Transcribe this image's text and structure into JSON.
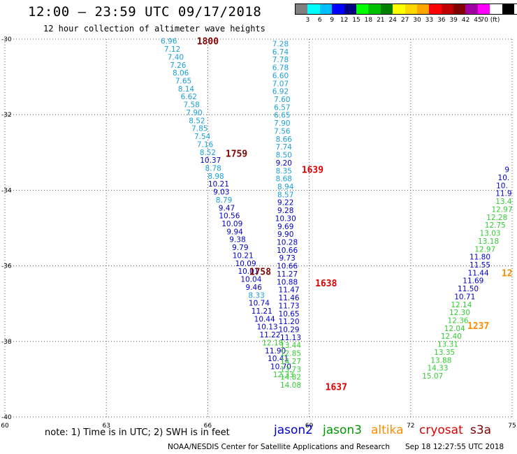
{
  "header": {
    "title": "12:00 – 23:59 UTC 09/17/2018",
    "subtitle": "12 hour collection of altimeter wave heights"
  },
  "colorbar": {
    "colors": [
      "#808080",
      "#00ffff",
      "#00bfff",
      "#0000ff",
      "#000080",
      "#00ff00",
      "#00c000",
      "#008000",
      "#ffff00",
      "#ffd700",
      "#ffa500",
      "#ff0000",
      "#c00000",
      "#800000",
      "#a000a0",
      "#ff00ff",
      "#ffffff",
      "#000000"
    ],
    "ticks": [
      "3",
      "6",
      "9",
      "12",
      "15",
      "18",
      "21",
      "24",
      "27",
      "30",
      "33",
      "36",
      "39",
      "42",
      "45",
      "70 (ft)"
    ]
  },
  "map": {
    "lon_range": [
      60,
      75
    ],
    "lat_range": [
      -40,
      -30
    ],
    "lat_ticks": [
      "-30",
      "-32",
      "-34",
      "-36",
      "-38",
      "-40"
    ],
    "lon_ticks": [
      "60",
      "63",
      "66",
      "69",
      "72",
      "75"
    ]
  },
  "mission_colors": {
    "jason2": "#0000cc",
    "jason3": "#009900",
    "altika": "#ff8c00",
    "cryosat": "#dd0000",
    "s3a": "#800000"
  },
  "value_colors": {
    "6-9": "#1ca0d8",
    "9-12": "#0000cc",
    "12-15": "#33cc33"
  },
  "tracks": [
    {
      "mission": "s3a",
      "time_label": "1800",
      "label_at": [
        66.0,
        -30.05
      ],
      "points": [
        [
          64.85,
          -30.05,
          "6.96"
        ],
        [
          64.95,
          -30.26,
          "7.12"
        ],
        [
          65.05,
          -30.47,
          "7.40"
        ],
        [
          65.12,
          -30.68,
          "7.26"
        ],
        [
          65.2,
          -30.89,
          "8.06"
        ],
        [
          65.28,
          -31.1,
          "7.65"
        ],
        [
          65.36,
          -31.31,
          "8.14"
        ],
        [
          65.44,
          -31.52,
          "6.62"
        ],
        [
          65.52,
          -31.73,
          "7.58"
        ],
        [
          65.6,
          -31.94,
          "7.90"
        ],
        [
          65.68,
          -32.15,
          "8.52"
        ],
        [
          65.76,
          -32.36,
          "7.85"
        ],
        [
          65.84,
          -32.57,
          "7.54"
        ],
        [
          65.92,
          -32.78,
          "7.16"
        ],
        [
          66.0,
          -32.99,
          "8.52"
        ],
        [
          66.08,
          -33.2,
          "10.37"
        ],
        [
          66.16,
          -33.41,
          "8.78"
        ],
        [
          66.24,
          -33.62,
          "8.98"
        ],
        [
          66.32,
          -33.83,
          "10.21"
        ],
        [
          66.4,
          -34.04,
          "9.03"
        ],
        [
          66.48,
          -34.25,
          "8.79"
        ],
        [
          66.56,
          -34.46,
          "9.47"
        ],
        [
          66.64,
          -34.67,
          "10.56"
        ],
        [
          66.72,
          -34.88,
          "10.09"
        ],
        [
          66.8,
          -35.09,
          "9.94"
        ],
        [
          66.88,
          -35.3,
          "9.38"
        ],
        [
          66.96,
          -35.51,
          "9.79"
        ],
        [
          67.04,
          -35.72,
          "10.21"
        ],
        [
          67.12,
          -35.93,
          "10.09"
        ],
        [
          67.2,
          -36.14,
          "10.01"
        ],
        [
          67.28,
          -36.35,
          "10.04"
        ],
        [
          67.36,
          -36.56,
          "9.46"
        ],
        [
          67.44,
          -36.77,
          "8.33"
        ],
        [
          67.52,
          -36.98,
          "10.74"
        ],
        [
          67.6,
          -37.19,
          "11.21"
        ],
        [
          67.68,
          -37.4,
          "10.44"
        ],
        [
          67.76,
          -37.61,
          "10.13"
        ],
        [
          67.84,
          -37.82,
          "11.22"
        ],
        [
          67.92,
          -38.03,
          "12.18"
        ],
        [
          68.0,
          -38.24,
          "11.90"
        ],
        [
          68.08,
          -38.45,
          "10.41"
        ],
        [
          68.16,
          -38.66,
          "10.70"
        ],
        [
          68.24,
          -38.87,
          "12.33"
        ]
      ],
      "extra_time_labels": [
        {
          "label": "1759",
          "at": [
            66.85,
            -33.02
          ]
        },
        {
          "label": "1758",
          "at": [
            67.55,
            -36.15
          ]
        }
      ]
    },
    {
      "mission": "cryosat",
      "time_label": "1639",
      "label_at": [
        69.1,
        -33.45
      ],
      "points": [
        [
          68.15,
          -30.12,
          "7.28"
        ],
        [
          68.15,
          -30.33,
          "6.74"
        ],
        [
          68.15,
          -30.54,
          "7.78"
        ],
        [
          68.15,
          -30.75,
          "6.78"
        ],
        [
          68.15,
          -30.96,
          "6.60"
        ],
        [
          68.15,
          -31.17,
          "7.07"
        ],
        [
          68.15,
          -31.38,
          "6.92"
        ],
        [
          68.2,
          -31.59,
          "7.60"
        ],
        [
          68.2,
          -31.8,
          "6.57"
        ],
        [
          68.2,
          -32.01,
          "6.65"
        ],
        [
          68.2,
          -32.22,
          "7.90"
        ],
        [
          68.2,
          -32.43,
          "7.56"
        ],
        [
          68.25,
          -32.64,
          "8.66"
        ],
        [
          68.25,
          -32.85,
          "7.74"
        ],
        [
          68.25,
          -33.06,
          "8.50"
        ],
        [
          68.25,
          -33.27,
          "9.20"
        ],
        [
          68.25,
          -33.48,
          "8.35"
        ],
        [
          68.25,
          -33.69,
          "8.68"
        ],
        [
          68.3,
          -33.9,
          "8.94"
        ],
        [
          68.3,
          -34.11,
          "8.57"
        ],
        [
          68.3,
          -34.32,
          "9.22"
        ],
        [
          68.3,
          -34.53,
          "9.28"
        ],
        [
          68.3,
          -34.74,
          "10.30"
        ],
        [
          68.3,
          -34.95,
          "9.69"
        ],
        [
          68.3,
          -35.16,
          "9.90"
        ],
        [
          68.35,
          -35.37,
          "10.28"
        ],
        [
          68.35,
          -35.58,
          "10.66"
        ],
        [
          68.35,
          -35.79,
          "9.73"
        ],
        [
          68.35,
          -36.0,
          "10.66"
        ],
        [
          68.35,
          -36.21,
          "11.27"
        ],
        [
          68.35,
          -36.42,
          "10.88"
        ],
        [
          68.4,
          -36.63,
          "11.47"
        ],
        [
          68.4,
          -36.84,
          "11.46"
        ],
        [
          68.4,
          -37.05,
          "11.73"
        ],
        [
          68.4,
          -37.26,
          "10.65"
        ],
        [
          68.4,
          -37.47,
          "11.20"
        ],
        [
          68.4,
          -37.68,
          "10.29"
        ],
        [
          68.45,
          -37.89,
          "11.13"
        ],
        [
          68.45,
          -38.1,
          "13.44"
        ],
        [
          68.45,
          -38.31,
          "12.85"
        ],
        [
          68.45,
          -38.52,
          "14.27"
        ],
        [
          68.45,
          -38.73,
          "13.73"
        ],
        [
          68.45,
          -38.94,
          "14.82"
        ],
        [
          68.45,
          -39.15,
          "14.08"
        ]
      ],
      "extra_time_labels": [
        {
          "label": "1638",
          "at": [
            69.5,
            -36.45
          ]
        },
        {
          "label": "1637",
          "at": [
            69.8,
            -39.2
          ]
        }
      ]
    },
    {
      "mission": "altika",
      "time_label": "1237",
      "label_at": [
        74.0,
        -37.58
      ],
      "points": [
        [
          74.85,
          -33.45,
          "9"
        ],
        [
          74.75,
          -33.66,
          "10."
        ],
        [
          74.7,
          -33.87,
          "10."
        ],
        [
          74.75,
          -34.08,
          "11.9"
        ],
        [
          74.75,
          -34.29,
          "13.4"
        ],
        [
          74.7,
          -34.5,
          "12.97"
        ],
        [
          74.55,
          -34.71,
          "12.28"
        ],
        [
          74.5,
          -34.92,
          "12.75"
        ],
        [
          74.35,
          -35.13,
          "13.03"
        ],
        [
          74.3,
          -35.34,
          "13.18"
        ],
        [
          74.2,
          -35.55,
          "12.97"
        ],
        [
          74.05,
          -35.76,
          "11.80"
        ],
        [
          74.05,
          -35.97,
          "11.55"
        ],
        [
          74.0,
          -36.18,
          "11.44"
        ],
        [
          73.85,
          -36.39,
          "11.69"
        ],
        [
          73.7,
          -36.6,
          "11.50"
        ],
        [
          73.6,
          -36.81,
          "10.71"
        ],
        [
          73.5,
          -37.02,
          "12.14"
        ],
        [
          73.45,
          -37.23,
          "12.30"
        ],
        [
          73.4,
          -37.44,
          "12.36"
        ],
        [
          73.3,
          -37.65,
          "12.04"
        ],
        [
          73.2,
          -37.86,
          "12.40"
        ],
        [
          73.1,
          -38.07,
          "13.31"
        ],
        [
          73.0,
          -38.28,
          "13.35"
        ],
        [
          72.9,
          -38.49,
          "13.88"
        ],
        [
          72.8,
          -38.7,
          "14.33"
        ],
        [
          72.65,
          -38.91,
          "15.07"
        ]
      ],
      "extra_time_labels": [
        {
          "label": "12",
          "at": [
            74.85,
            -36.18
          ]
        }
      ]
    }
  ],
  "legend": {
    "note": "note: 1) Time is in UTC; 2) SWH is in feet",
    "missions": [
      "jason2",
      "jason3",
      "altika",
      "cryosat",
      "s3a"
    ]
  },
  "footer": {
    "credit": "NOAA/NESDIS Center for Satellite Applications and Research",
    "generated": "Sep 18 12:27:55 UTC 2018"
  }
}
